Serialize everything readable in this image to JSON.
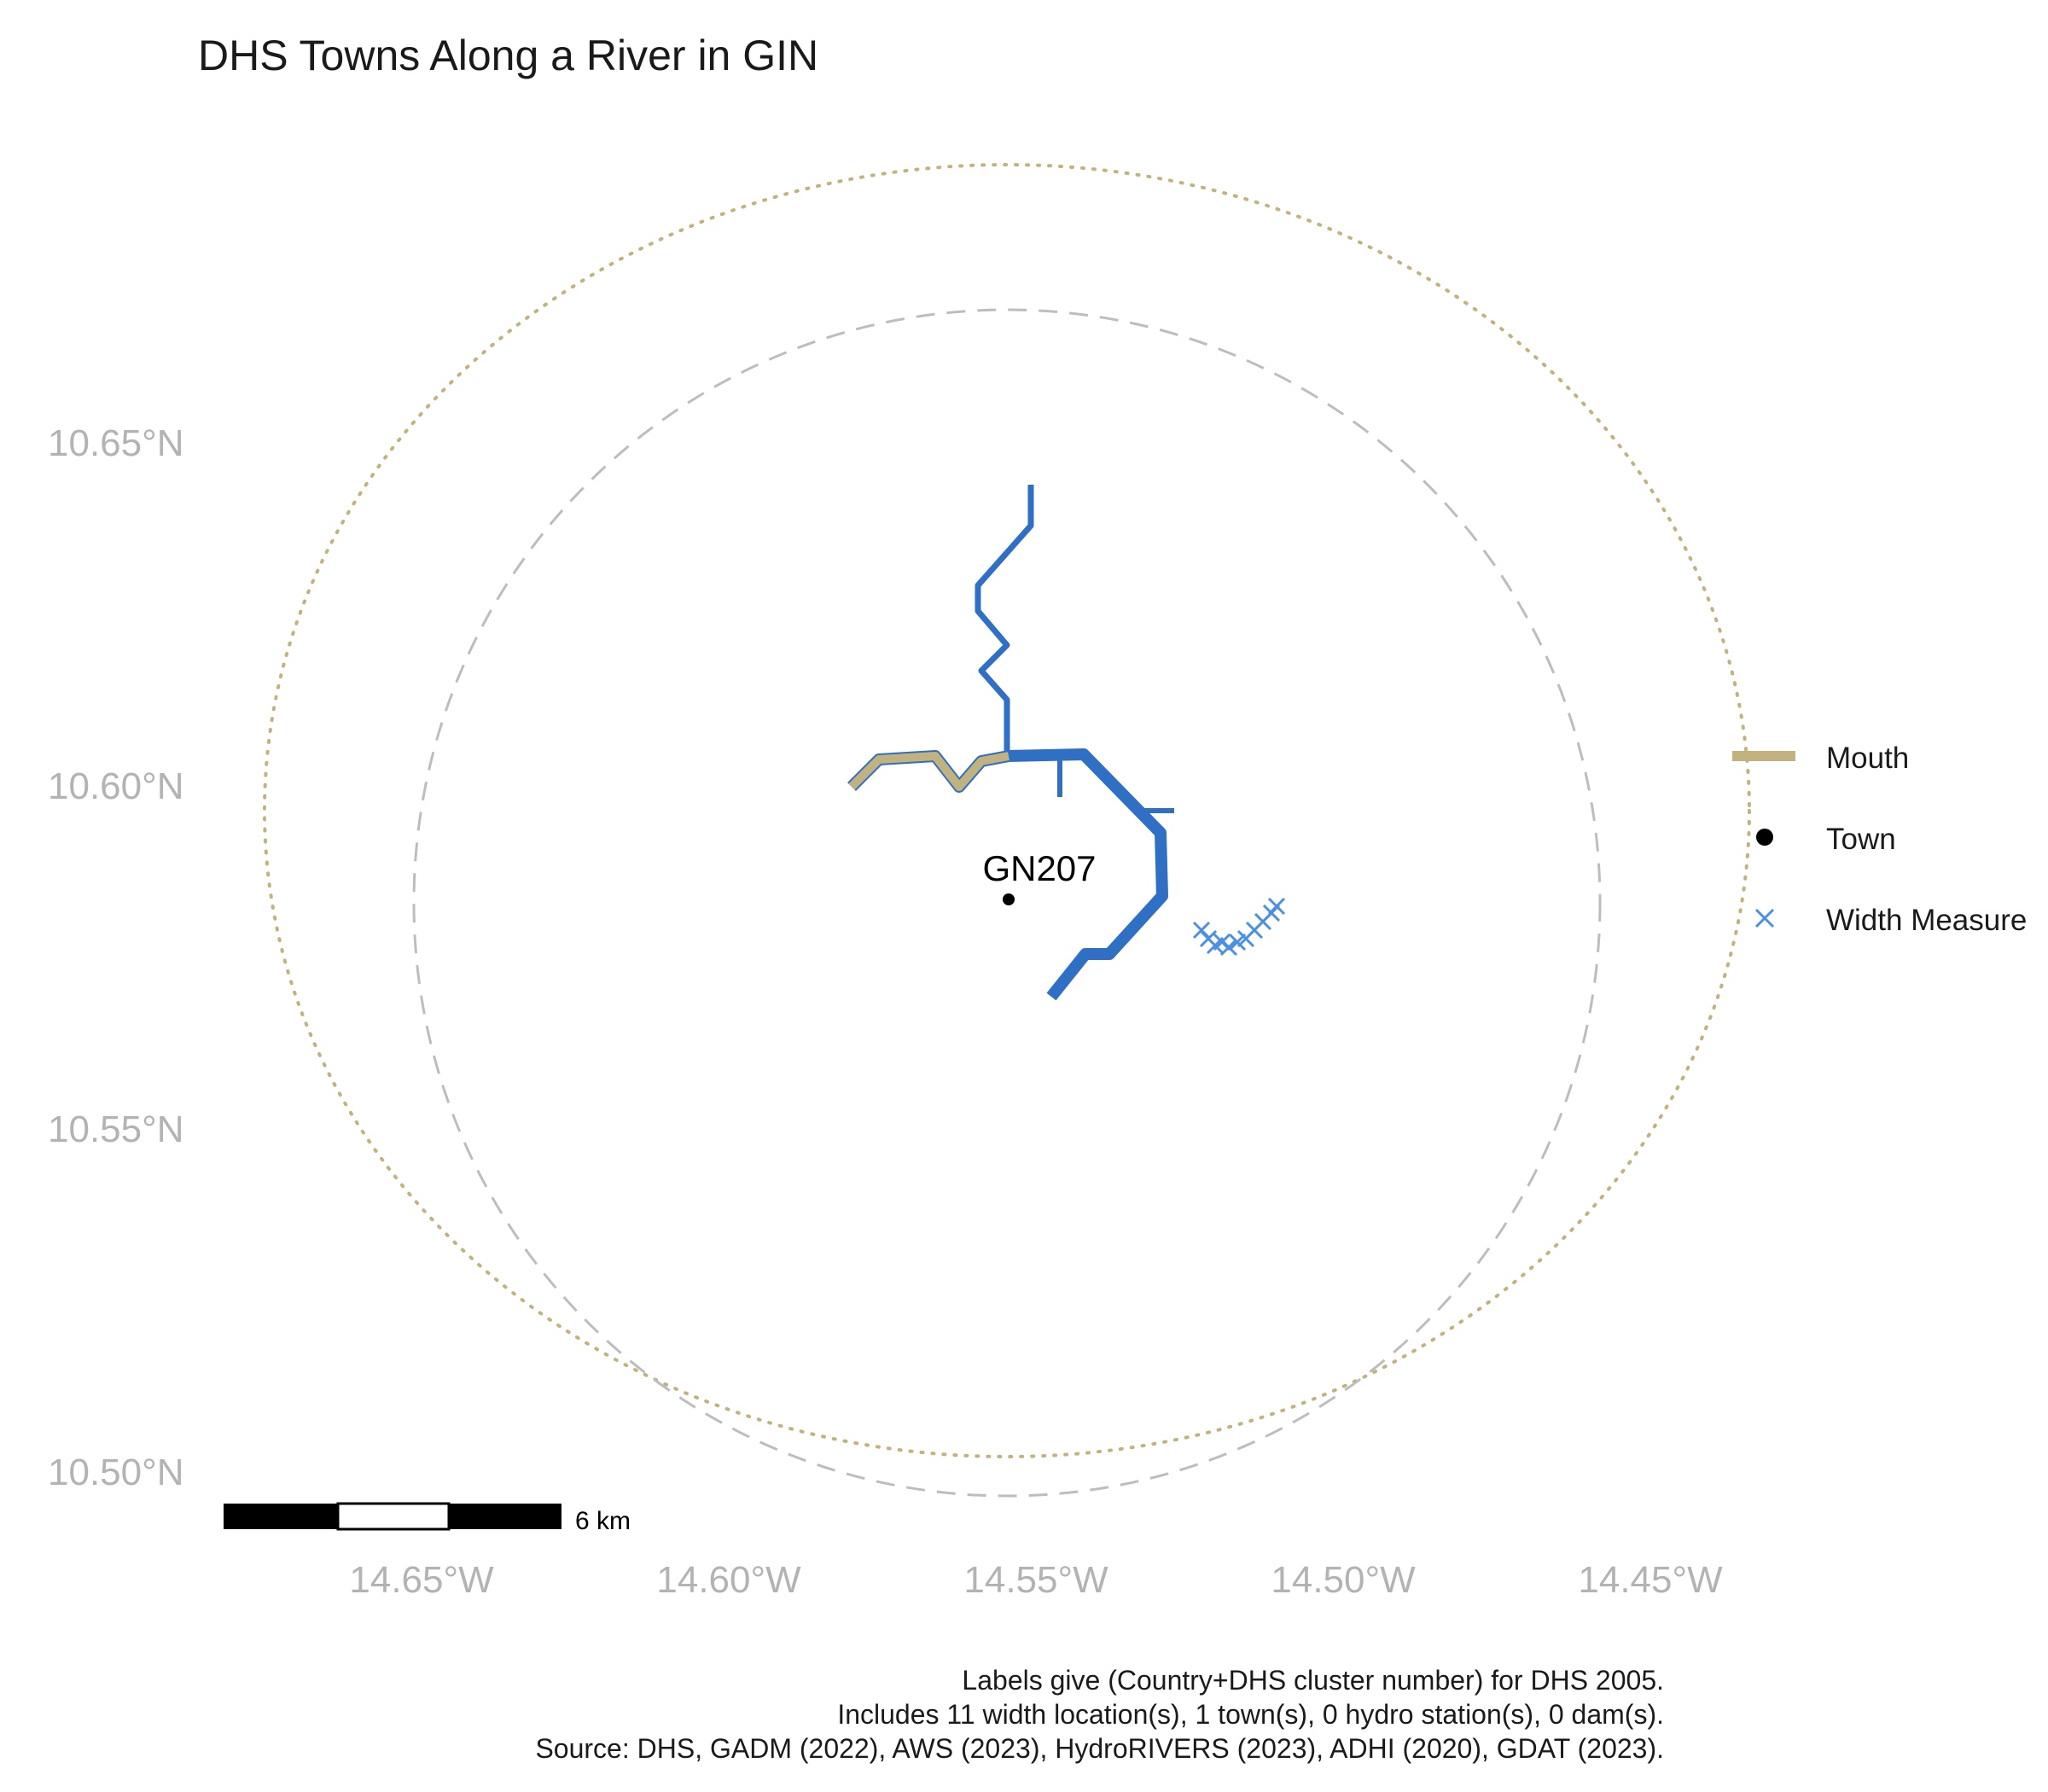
{
  "title": "DHS Towns Along a River in GIN",
  "axes": {
    "y_ticks": [
      "10.65°N",
      "10.60°N",
      "10.55°N",
      "10.50°N"
    ],
    "x_ticks": [
      "14.65°W",
      "14.60°W",
      "14.55°W",
      "14.50°W",
      "14.45°W"
    ]
  },
  "legend": {
    "items": [
      {
        "label": "Mouth",
        "symbol": "line",
        "color": "#C2B280"
      },
      {
        "label": "Town",
        "symbol": "dot",
        "color": "#000000"
      },
      {
        "label": "Width Measure",
        "symbol": "cross",
        "color": "#4A90E2"
      }
    ]
  },
  "town": {
    "label": "GN207"
  },
  "scale_bar": {
    "label": "6 km"
  },
  "caption": [
    "Labels give (Country+DHS cluster number) for DHS 2005.",
    "Includes 11 width location(s), 1 town(s), 0 hydro station(s), 0 dam(s).",
    "Source: DHS, GADM (2022), AWS (2023), HydroRIVERS (2023), ADHI (2020), GDAT (2023)."
  ],
  "colors": {
    "river": "#2F6FC4",
    "mouth": "#C2B280",
    "width_measure": "#4A90E2",
    "dashed_circle": "#bdbdbd",
    "dotted_circle": "#C2B280",
    "axis_text": "#b3b3b3"
  }
}
